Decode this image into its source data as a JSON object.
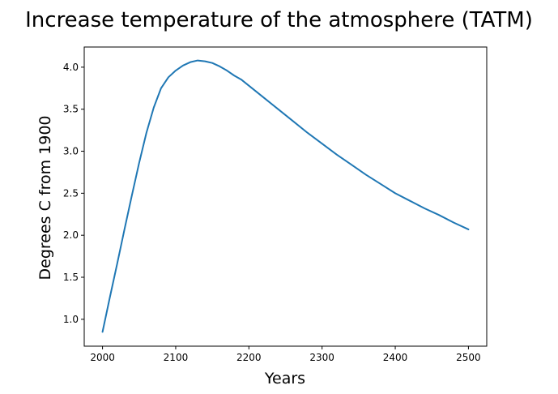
{
  "chart_data": {
    "type": "line",
    "title": "Increase temperature of the atmosphere (TATM)",
    "xlabel": "Years",
    "ylabel": "Degrees C from 1900",
    "xlim": [
      1975,
      2525
    ],
    "ylim": [
      0.68,
      4.24
    ],
    "xticks": [
      2000,
      2100,
      2200,
      2300,
      2400,
      2500
    ],
    "yticks": [
      1.0,
      1.5,
      2.0,
      2.5,
      3.0,
      3.5,
      4.0
    ],
    "xtick_labels": [
      "2000",
      "2100",
      "2200",
      "2300",
      "2400",
      "2500"
    ],
    "ytick_labels": [
      "1.0",
      "1.5",
      "2.0",
      "2.5",
      "3.0",
      "3.5",
      "4.0"
    ],
    "grid": false,
    "series": [
      {
        "color": "#1f77b4",
        "x": [
          2000,
          2010,
          2020,
          2030,
          2040,
          2050,
          2060,
          2070,
          2080,
          2090,
          2100,
          2110,
          2120,
          2130,
          2140,
          2150,
          2160,
          2170,
          2180,
          2190,
          2200,
          2220,
          2240,
          2260,
          2280,
          2300,
          2320,
          2340,
          2360,
          2380,
          2400,
          2420,
          2440,
          2460,
          2480,
          2500
        ],
        "y": [
          0.85,
          1.26,
          1.66,
          2.07,
          2.47,
          2.86,
          3.22,
          3.52,
          3.75,
          3.88,
          3.96,
          4.02,
          4.06,
          4.08,
          4.07,
          4.05,
          4.01,
          3.96,
          3.9,
          3.85,
          3.78,
          3.64,
          3.5,
          3.36,
          3.22,
          3.09,
          2.96,
          2.84,
          2.72,
          2.61,
          2.5,
          2.41,
          2.32,
          2.24,
          2.15,
          2.07
        ]
      }
    ]
  }
}
